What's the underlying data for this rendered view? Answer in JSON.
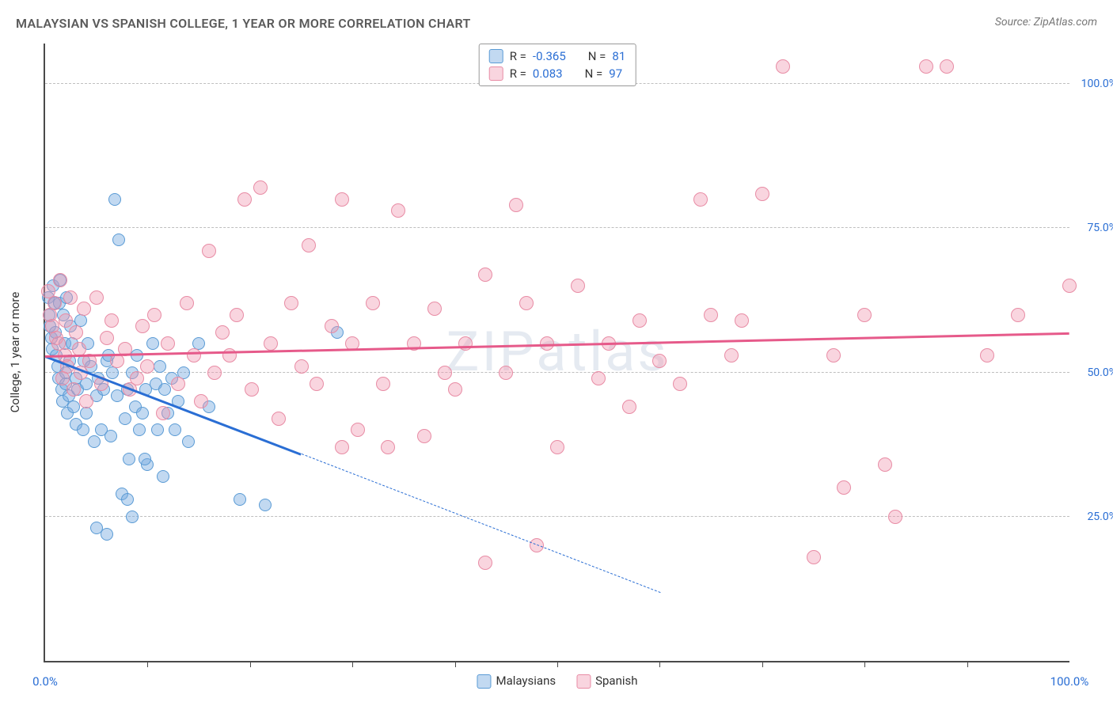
{
  "title": "MALAYSIAN VS SPANISH COLLEGE, 1 YEAR OR MORE CORRELATION CHART",
  "source_label": "Source: ZipAtlas.com",
  "watermark": "ZIPatlas",
  "axes": {
    "y_title": "College, 1 year or more",
    "x_min": 0,
    "x_max": 100,
    "y_min": 0,
    "y_max": 107,
    "x_label_min": "0.0%",
    "x_label_max": "100.0%",
    "x_label_color": "#2a6ed4",
    "x_ticks": [
      10,
      20,
      30,
      40,
      50,
      60,
      70,
      80,
      90
    ],
    "x_tick_color": "#4a4a4a",
    "y_grid": [
      {
        "v": 25,
        "label": "25.0%"
      },
      {
        "v": 50,
        "label": "50.0%"
      },
      {
        "v": 75,
        "label": "75.0%"
      },
      {
        "v": 100,
        "label": "100.0%"
      }
    ],
    "y_grid_color": "#bfbfbf",
    "y_label_color": "#2a6ed4"
  },
  "series": [
    {
      "name": "Malaysians",
      "R": "-0.365",
      "N": "81",
      "marker_fill": "rgba(120,170,225,0.45)",
      "marker_stroke": "#5a9bd5",
      "marker_size": 16,
      "trend": {
        "x1": 0,
        "y1": 53,
        "x2_solid": 25,
        "y2_solid": 36,
        "x2_dash": 60,
        "y2_dash": 12,
        "color": "#2a6ed4"
      },
      "points": [
        [
          0.3,
          63
        ],
        [
          0.4,
          60
        ],
        [
          0.5,
          58
        ],
        [
          0.6,
          56
        ],
        [
          0.7,
          54
        ],
        [
          0.8,
          65
        ],
        [
          0.9,
          62
        ],
        [
          1.0,
          57
        ],
        [
          1.1,
          53
        ],
        [
          1.2,
          51
        ],
        [
          1.3,
          49
        ],
        [
          1.4,
          62
        ],
        [
          1.5,
          66
        ],
        [
          1.6,
          47
        ],
        [
          1.7,
          45
        ],
        [
          1.8,
          60
        ],
        [
          1.9,
          55
        ],
        [
          2.0,
          50
        ],
        [
          2.0,
          48
        ],
        [
          2.1,
          63
        ],
        [
          2.2,
          43
        ],
        [
          2.3,
          46
        ],
        [
          2.4,
          52
        ],
        [
          2.5,
          58
        ],
        [
          2.6,
          55
        ],
        [
          2.8,
          44
        ],
        [
          3.0,
          49
        ],
        [
          3.0,
          41
        ],
        [
          3.2,
          47
        ],
        [
          3.5,
          59
        ],
        [
          3.7,
          40
        ],
        [
          3.8,
          52
        ],
        [
          4.0,
          48
        ],
        [
          4.0,
          43
        ],
        [
          4.2,
          55
        ],
        [
          4.5,
          51
        ],
        [
          4.8,
          38
        ],
        [
          5.0,
          46
        ],
        [
          5.2,
          49
        ],
        [
          5.5,
          40
        ],
        [
          5.7,
          47
        ],
        [
          6.0,
          52
        ],
        [
          6.2,
          53
        ],
        [
          6.4,
          39
        ],
        [
          6.6,
          50
        ],
        [
          6.8,
          80
        ],
        [
          7.0,
          46
        ],
        [
          7.2,
          73
        ],
        [
          7.5,
          29
        ],
        [
          7.8,
          42
        ],
        [
          8.0,
          47
        ],
        [
          8.2,
          35
        ],
        [
          8.5,
          50
        ],
        [
          8.8,
          44
        ],
        [
          9.0,
          53
        ],
        [
          9.2,
          40
        ],
        [
          9.5,
          43
        ],
        [
          9.8,
          47
        ],
        [
          10.0,
          34
        ],
        [
          10.5,
          55
        ],
        [
          10.8,
          48
        ],
        [
          11.0,
          40
        ],
        [
          11.2,
          51
        ],
        [
          11.5,
          32
        ],
        [
          11.7,
          47
        ],
        [
          5.0,
          23
        ],
        [
          6.0,
          22
        ],
        [
          8.0,
          28
        ],
        [
          8.5,
          25
        ],
        [
          9.7,
          35
        ],
        [
          12.0,
          43
        ],
        [
          12.4,
          49
        ],
        [
          12.7,
          40
        ],
        [
          13.0,
          45
        ],
        [
          13.5,
          50
        ],
        [
          14.0,
          38
        ],
        [
          15.0,
          55
        ],
        [
          16.0,
          44
        ],
        [
          19.0,
          28
        ],
        [
          21.5,
          27
        ],
        [
          28.5,
          57
        ]
      ]
    },
    {
      "name": "Spanish",
      "R": "0.083",
      "N": "97",
      "marker_fill": "rgba(240,150,175,0.40)",
      "marker_stroke": "#e88ca5",
      "marker_size": 18,
      "trend": {
        "x1": 0,
        "y1": 53,
        "x2_solid": 100,
        "y2_solid": 57,
        "x2_dash": 100,
        "y2_dash": 57,
        "color": "#e65a8a"
      },
      "points": [
        [
          0.3,
          64
        ],
        [
          0.5,
          60
        ],
        [
          0.7,
          58
        ],
        [
          0.9,
          62
        ],
        [
          1.1,
          56
        ],
        [
          1.3,
          55
        ],
        [
          1.5,
          66
        ],
        [
          1.7,
          49
        ],
        [
          1.9,
          53
        ],
        [
          2.0,
          59
        ],
        [
          2.2,
          51
        ],
        [
          2.5,
          63
        ],
        [
          2.8,
          47
        ],
        [
          3.0,
          57
        ],
        [
          3.3,
          54
        ],
        [
          3.5,
          50
        ],
        [
          3.8,
          61
        ],
        [
          4.0,
          45
        ],
        [
          4.3,
          52
        ],
        [
          5.0,
          63
        ],
        [
          5.5,
          48
        ],
        [
          6.0,
          56
        ],
        [
          6.5,
          59
        ],
        [
          7.0,
          52
        ],
        [
          7.8,
          54
        ],
        [
          8.3,
          47
        ],
        [
          9.0,
          49
        ],
        [
          9.5,
          58
        ],
        [
          10.0,
          51
        ],
        [
          10.7,
          60
        ],
        [
          11.5,
          43
        ],
        [
          12.0,
          55
        ],
        [
          13.0,
          48
        ],
        [
          13.8,
          62
        ],
        [
          14.5,
          53
        ],
        [
          15.2,
          45
        ],
        [
          16.0,
          71
        ],
        [
          16.5,
          50
        ],
        [
          17.3,
          57
        ],
        [
          18.0,
          53
        ],
        [
          18.7,
          60
        ],
        [
          19.5,
          80
        ],
        [
          20.2,
          47
        ],
        [
          21.0,
          82
        ],
        [
          22.0,
          55
        ],
        [
          22.8,
          42
        ],
        [
          24.0,
          62
        ],
        [
          25.0,
          51
        ],
        [
          25.7,
          72
        ],
        [
          26.5,
          48
        ],
        [
          28.0,
          58
        ],
        [
          29.0,
          37
        ],
        [
          29.0,
          80
        ],
        [
          30.0,
          55
        ],
        [
          30.5,
          40
        ],
        [
          32.0,
          62
        ],
        [
          33.0,
          48
        ],
        [
          33.5,
          37
        ],
        [
          34.5,
          78
        ],
        [
          36.0,
          55
        ],
        [
          37.0,
          39
        ],
        [
          38.0,
          61
        ],
        [
          39.0,
          50
        ],
        [
          40.0,
          47
        ],
        [
          41.0,
          55
        ],
        [
          43.0,
          17
        ],
        [
          43.0,
          67
        ],
        [
          45.0,
          50
        ],
        [
          46.0,
          79
        ],
        [
          47.0,
          62
        ],
        [
          48.0,
          20
        ],
        [
          49.0,
          55
        ],
        [
          50.0,
          37
        ],
        [
          52.0,
          65
        ],
        [
          54.0,
          49
        ],
        [
          55.0,
          55
        ],
        [
          57.0,
          44
        ],
        [
          58.0,
          59
        ],
        [
          60.0,
          52
        ],
        [
          62.0,
          48
        ],
        [
          64.0,
          80
        ],
        [
          65.0,
          60
        ],
        [
          67.0,
          53
        ],
        [
          68.0,
          59
        ],
        [
          70.0,
          81
        ],
        [
          72.0,
          103
        ],
        [
          75.0,
          18
        ],
        [
          77.0,
          53
        ],
        [
          78.0,
          30
        ],
        [
          80.0,
          60
        ],
        [
          82.0,
          34
        ],
        [
          83.0,
          25
        ],
        [
          86.0,
          103
        ],
        [
          88.0,
          103
        ],
        [
          92.0,
          53
        ],
        [
          95.0,
          60
        ],
        [
          100.0,
          65
        ]
      ]
    }
  ],
  "legend_top_labels": {
    "R": "R =",
    "N": "N ="
  },
  "legend_bottom": [
    {
      "label": "Malaysians",
      "fill": "rgba(120,170,225,0.45)",
      "stroke": "#5a9bd5"
    },
    {
      "label": "Spanish",
      "fill": "rgba(240,150,175,0.40)",
      "stroke": "#e88ca5"
    }
  ]
}
